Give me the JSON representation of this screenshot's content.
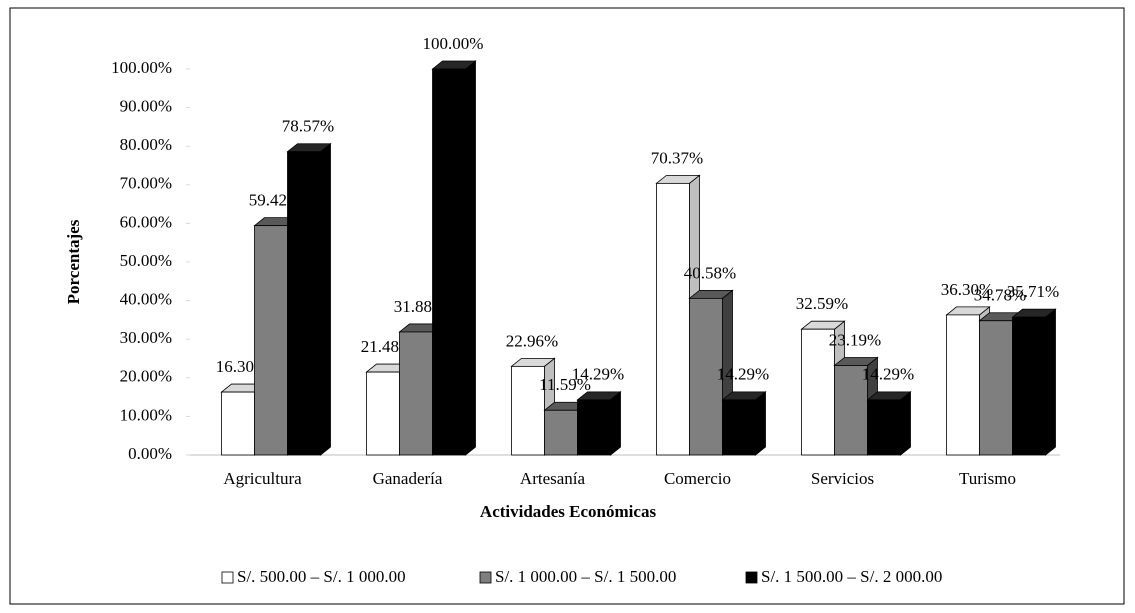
{
  "chart_data": {
    "type": "bar3d",
    "x_label": "Actividades Económicas",
    "y_label": "Porcentajes",
    "categories": [
      "Agricultura",
      "Ganadería",
      "Artesanía",
      "Comercio",
      "Servicios",
      "Turismo"
    ],
    "series": [
      {
        "name": "S/. 500.00 – S/. 1 000.00",
        "color": "#ffffff",
        "side": "#bfbfbf",
        "top": "#d9d9d9",
        "values": [
          16.3,
          21.48,
          22.96,
          70.37,
          32.59,
          36.3
        ],
        "value_labels": [
          "16.30%",
          "21.48%",
          "22.96%",
          "70.37%",
          "32.59%",
          "36.30%"
        ]
      },
      {
        "name": "S/. 1 000.00 – S/. 1 500.00",
        "color": "#7f7f7f",
        "side": "#404040",
        "top": "#595959",
        "values": [
          59.42,
          31.88,
          11.59,
          40.58,
          23.19,
          34.78
        ],
        "value_labels": [
          "59.42%",
          "31.88%",
          "11.59%",
          "40.58%",
          "23.19%",
          "34.78%"
        ]
      },
      {
        "name": "S/. 1 500.00 – S/. 2 000.00",
        "color": "#000000",
        "side": "#000000",
        "top": "#262626",
        "values": [
          78.57,
          100.0,
          14.29,
          14.29,
          14.29,
          35.71
        ],
        "value_labels": [
          "78.57%",
          "100.00%",
          "14.29%",
          "14.29%",
          "14.29%",
          "35.71%"
        ]
      }
    ],
    "ylim": [
      0,
      100
    ],
    "yticks": [
      {
        "value": 0,
        "label": "0.00%"
      },
      {
        "value": 10,
        "label": "10.00%"
      },
      {
        "value": 20,
        "label": "20.00%"
      },
      {
        "value": 30,
        "label": "30.00%"
      },
      {
        "value": 40,
        "label": "40.00%"
      },
      {
        "value": 50,
        "label": "50.00%"
      },
      {
        "value": 60,
        "label": "60.00%"
      },
      {
        "value": 70,
        "label": "70.00%"
      },
      {
        "value": 80,
        "label": "80.00%"
      },
      {
        "value": 90,
        "label": "90.00%"
      },
      {
        "value": 100,
        "label": "100.00%"
      }
    ],
    "legend": "bottom"
  }
}
